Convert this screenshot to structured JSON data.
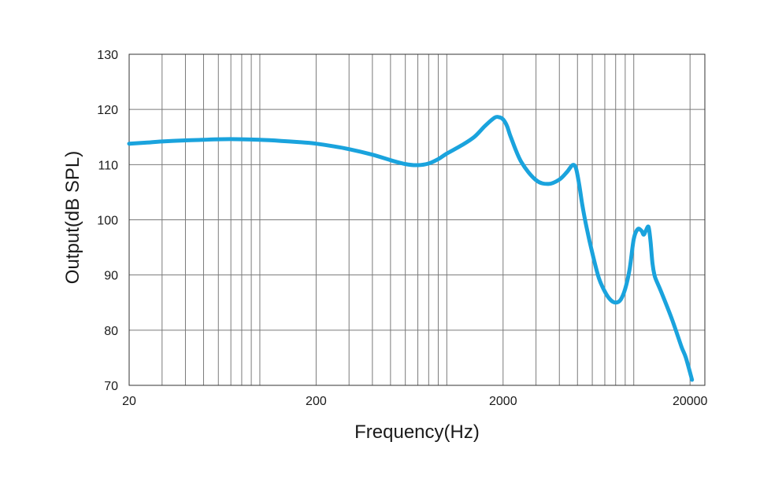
{
  "chart_data": {
    "type": "line",
    "title": "",
    "xlabel": "Frequency(Hz)",
    "ylabel": "Output(dB SPL)",
    "xscale": "log",
    "xlim": [
      20,
      24000
    ],
    "ylim": [
      70,
      130
    ],
    "xticks": [
      20,
      200,
      2000,
      20000
    ],
    "xtick_labels": [
      "20",
      "200",
      "2000",
      "20000"
    ],
    "yticks": [
      70,
      80,
      90,
      100,
      110,
      120,
      130
    ],
    "ytick_labels": [
      "70",
      "80",
      "90",
      "100",
      "110",
      "120",
      "130"
    ],
    "grid": true,
    "series": [
      {
        "name": "",
        "color": "#1aa3dd",
        "x": [
          20,
          25,
          30,
          40,
          50,
          60,
          80,
          100,
          130,
          160,
          200,
          250,
          300,
          400,
          500,
          600,
          700,
          800,
          900,
          1000,
          1200,
          1400,
          1600,
          1800,
          1900,
          2000,
          2100,
          2200,
          2500,
          3000,
          3500,
          4000,
          4400,
          4700,
          4900,
          5100,
          5300,
          5600,
          6000,
          6500,
          7000,
          7500,
          8000,
          8500,
          9000,
          9500,
          10000,
          10500,
          11000,
          11300,
          11600,
          12000,
          12300,
          12600,
          12900,
          13200,
          14000,
          16000,
          18000,
          19000,
          20500
        ],
        "y": [
          113.8,
          114.0,
          114.2,
          114.4,
          114.5,
          114.6,
          114.6,
          114.5,
          114.3,
          114.1,
          113.8,
          113.3,
          112.8,
          111.8,
          110.8,
          110.1,
          109.9,
          110.2,
          111.0,
          112.0,
          113.5,
          115.0,
          117.0,
          118.5,
          118.6,
          118.2,
          117.0,
          115.0,
          110.5,
          107.2,
          106.5,
          107.3,
          108.7,
          109.9,
          109.4,
          106.5,
          102.8,
          98.5,
          94.0,
          89.5,
          87.0,
          85.5,
          85.0,
          85.5,
          87.5,
          91.0,
          96.5,
          98.3,
          98.0,
          97.3,
          98.0,
          98.7,
          96.0,
          92.0,
          90.0,
          89.0,
          87.0,
          82.0,
          77.0,
          75.0,
          71.0
        ]
      }
    ]
  }
}
